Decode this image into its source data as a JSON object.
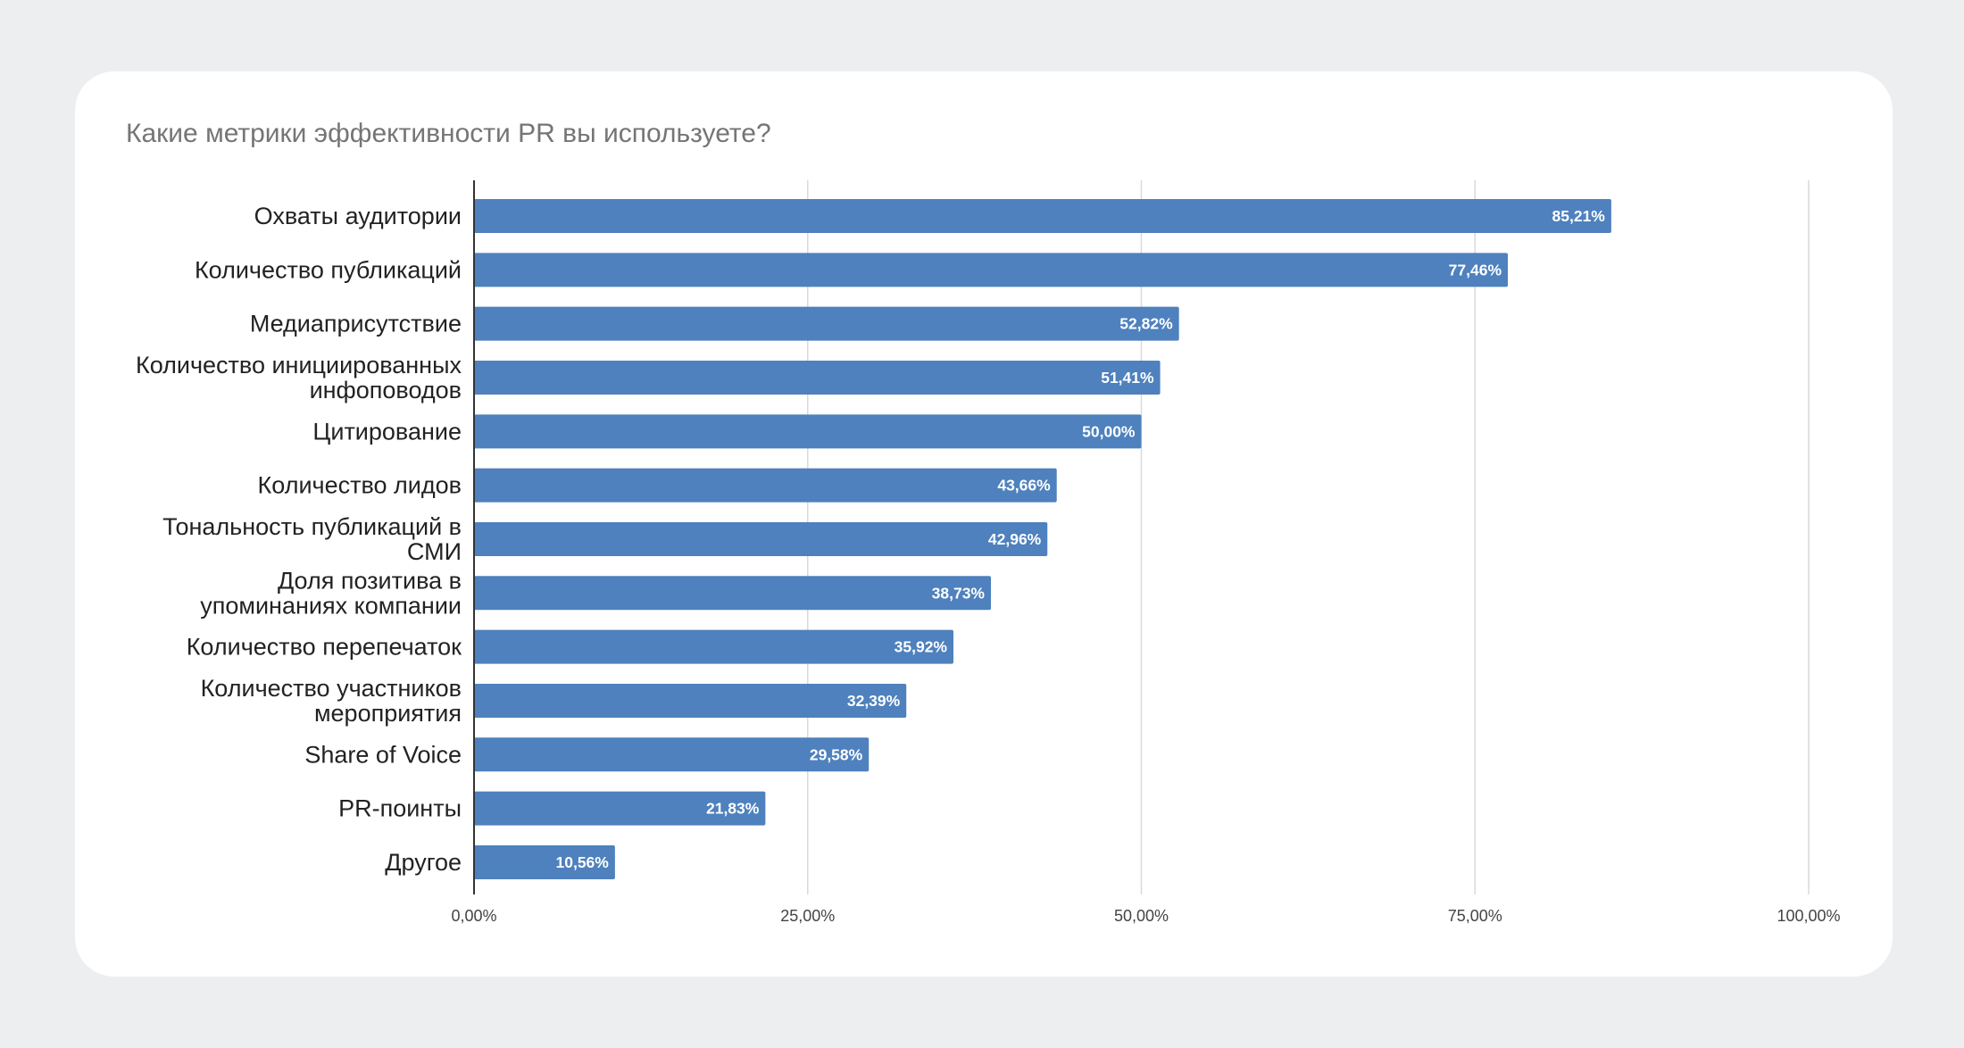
{
  "colors": {
    "background": "#edeef0",
    "card": "#ffffff",
    "bar": "#4e81bd",
    "grid": "#d9d9d9",
    "axis": "#333333",
    "title": "#757575"
  },
  "chart_data": {
    "type": "bar",
    "orientation": "horizontal",
    "title": "Какие метрики эффективности PR вы используете?",
    "categories": [
      [
        "Охваты аудитории"
      ],
      [
        "Количество публикаций"
      ],
      [
        "Медиаприсутствие"
      ],
      [
        "Количество инициированных",
        "инфоповодов"
      ],
      [
        "Цитирование"
      ],
      [
        "Количество лидов"
      ],
      [
        "Тональность публикаций в",
        "СМИ"
      ],
      [
        "Доля позитива в",
        "упоминаниях компании"
      ],
      [
        "Количество перепечаток"
      ],
      [
        "Количество участников",
        "мероприятия"
      ],
      [
        "Share of Voice"
      ],
      [
        "PR-поинты"
      ],
      [
        "Другое"
      ]
    ],
    "values": [
      85.21,
      77.46,
      52.82,
      51.41,
      50.0,
      43.66,
      42.96,
      38.73,
      35.92,
      32.39,
      29.58,
      21.83,
      10.56
    ],
    "value_labels": [
      "85,21%",
      "77,46%",
      "52,82%",
      "51,41%",
      "50,00%",
      "43,66%",
      "42,96%",
      "38,73%",
      "35,92%",
      "32,39%",
      "29,58%",
      "21,83%",
      "10,56%"
    ],
    "xlim": [
      0,
      100
    ],
    "x_ticks": [
      0,
      25,
      50,
      75,
      100
    ],
    "x_tick_labels": [
      "0,00%",
      "25,00%",
      "50,00%",
      "75,00%",
      "100,00%"
    ],
    "grid": true,
    "legend": "none"
  }
}
